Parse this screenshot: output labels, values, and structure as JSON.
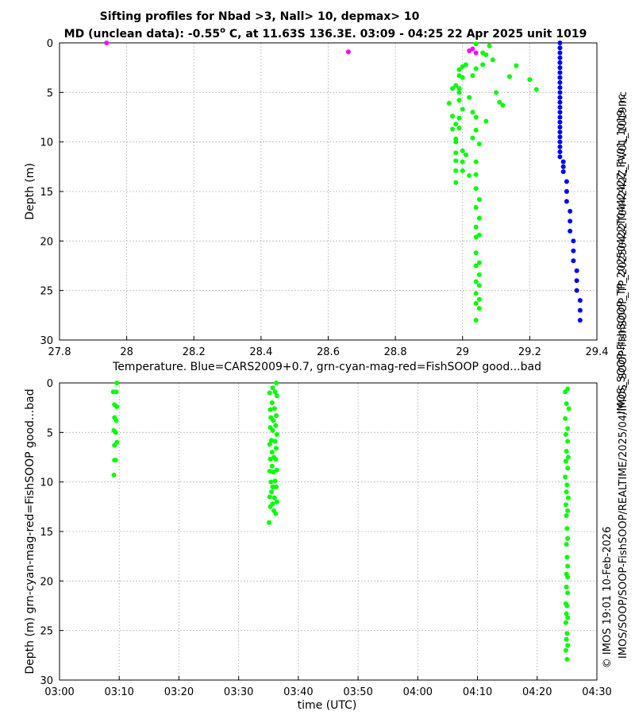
{
  "title_line1": "Sifting profiles for Nbad >3, Nall> 10, depmax> 10",
  "title_line2_pre": "MD (unclean data): -0.55",
  "title_line2_sup": "o",
  "title_line2_post": " C, at 11.63S 136.3E. 03:09 - 04:25 22 Apr 2025 unit 1019",
  "side_text_1": "IMOS_SOOP-FishSOOP_TP_20250422T044242Z_FV01_1019.nc",
  "side_text_2": "IMOS/SOOP/SOOP-FishSOOP/REALTIME/2025/04/IMOS_SOOP-FishSOOP_TP_20250422T044242Z_FV01_1019.nc",
  "side_text_3": "© IMOS 19:01 10-Feb-2026",
  "colors": {
    "good": "#00ff00",
    "bad": "#ff00ff",
    "cars": "#0000ff"
  },
  "chart_data": [
    {
      "type": "scatter",
      "xlabel": "Temperature. Blue=CARS2009+0.7, grn-cyan-mag-red=FishSOOP good...bad",
      "ylabel": "Depth (m)",
      "xlim": [
        27.8,
        29.4
      ],
      "ylim": [
        30,
        0
      ],
      "y_reversed": true,
      "xticks": [
        27.8,
        28,
        28.2,
        28.4,
        28.6,
        28.8,
        29,
        29.2,
        29.4
      ],
      "xtick_labels": [
        "27.8",
        "28",
        "28.2",
        "28.4",
        "28.6",
        "28.8",
        "29",
        "29.2",
        "29.4"
      ],
      "yticks": [
        0,
        5,
        10,
        15,
        20,
        25,
        30
      ],
      "ytick_labels": [
        "0",
        "5",
        "10",
        "15",
        "20",
        "25",
        "30"
      ],
      "grid": true,
      "series": [
        {
          "color_key": "good",
          "points": [
            [
              29.04,
              0.1
            ],
            [
              29.08,
              0.3
            ],
            [
              29.06,
              1.0
            ],
            [
              29.07,
              1.2
            ],
            [
              29.09,
              1.7
            ],
            [
              29.06,
              2.2
            ],
            [
              29.01,
              2.2
            ],
            [
              29.0,
              2.4
            ],
            [
              28.99,
              2.7
            ],
            [
              29.04,
              2.6
            ],
            [
              28.99,
              3.3
            ],
            [
              29.03,
              3.3
            ],
            [
              29.0,
              3.5
            ],
            [
              28.98,
              4.3
            ],
            [
              28.99,
              4.6
            ],
            [
              28.97,
              4.6
            ],
            [
              28.99,
              5.0
            ],
            [
              29.02,
              5.5
            ],
            [
              28.99,
              5.8
            ],
            [
              28.96,
              6.1
            ],
            [
              29.0,
              6.7
            ],
            [
              29.03,
              7.0
            ],
            [
              28.97,
              7.4
            ],
            [
              28.99,
              7.6
            ],
            [
              29.04,
              7.5
            ],
            [
              29.07,
              7.9
            ],
            [
              28.98,
              8.2
            ],
            [
              28.99,
              8.6
            ],
            [
              28.97,
              8.7
            ],
            [
              29.04,
              8.8
            ],
            [
              28.98,
              9.7
            ],
            [
              29.03,
              9.6
            ],
            [
              28.98,
              10.0
            ],
            [
              29.05,
              10.2
            ],
            [
              29.0,
              10.9
            ],
            [
              28.98,
              11.1
            ],
            [
              29.01,
              11.3
            ],
            [
              28.98,
              11.9
            ],
            [
              29.0,
              12.0
            ],
            [
              29.04,
              12.0
            ],
            [
              29.0,
              12.9
            ],
            [
              28.98,
              12.9
            ],
            [
              29.02,
              13.4
            ],
            [
              29.04,
              13.3
            ],
            [
              28.98,
              14.1
            ],
            [
              29.04,
              14.7
            ],
            [
              29.05,
              15.8
            ],
            [
              29.04,
              16.6
            ],
            [
              29.05,
              17.7
            ],
            [
              29.04,
              18.6
            ],
            [
              29.04,
              19.6
            ],
            [
              29.05,
              19.4
            ],
            [
              29.04,
              21.2
            ],
            [
              29.05,
              22.2
            ],
            [
              29.04,
              22.5
            ],
            [
              29.05,
              23.4
            ],
            [
              29.04,
              24.1
            ],
            [
              29.05,
              24.5
            ],
            [
              29.04,
              25.3
            ],
            [
              29.05,
              25.9
            ],
            [
              29.04,
              26.3
            ],
            [
              29.05,
              26.8
            ],
            [
              29.04,
              28.0
            ],
            [
              29.1,
              5.0
            ],
            [
              29.11,
              6.0
            ],
            [
              29.12,
              6.3
            ],
            [
              29.14,
              3.4
            ],
            [
              29.16,
              2.3
            ],
            [
              29.2,
              3.7
            ],
            [
              29.22,
              4.7
            ]
          ]
        },
        {
          "color_key": "bad",
          "points": [
            [
              27.94,
              0.0
            ],
            [
              28.66,
              0.9
            ],
            [
              29.03,
              0.6
            ],
            [
              29.04,
              1.0
            ],
            [
              29.02,
              0.8
            ]
          ]
        },
        {
          "color_key": "cars",
          "points": [
            [
              29.29,
              0.0
            ],
            [
              29.29,
              0.5
            ],
            [
              29.29,
              1.0
            ],
            [
              29.29,
              1.5
            ],
            [
              29.29,
              2.0
            ],
            [
              29.29,
              2.5
            ],
            [
              29.29,
              3.0
            ],
            [
              29.29,
              3.5
            ],
            [
              29.29,
              4.0
            ],
            [
              29.29,
              4.5
            ],
            [
              29.29,
              5.0
            ],
            [
              29.29,
              5.5
            ],
            [
              29.29,
              6.0
            ],
            [
              29.29,
              6.5
            ],
            [
              29.29,
              7.0
            ],
            [
              29.29,
              7.5
            ],
            [
              29.29,
              8.0
            ],
            [
              29.29,
              8.5
            ],
            [
              29.29,
              9.0
            ],
            [
              29.29,
              9.5
            ],
            [
              29.29,
              10.0
            ],
            [
              29.29,
              10.5
            ],
            [
              29.29,
              11.0
            ],
            [
              29.29,
              11.5
            ],
            [
              29.3,
              12.0
            ],
            [
              29.3,
              12.5
            ],
            [
              29.3,
              13.0
            ],
            [
              29.31,
              14.0
            ],
            [
              29.31,
              15.0
            ],
            [
              29.31,
              16.0
            ],
            [
              29.32,
              17.0
            ],
            [
              29.32,
              18.0
            ],
            [
              29.32,
              19.0
            ],
            [
              29.33,
              20.0
            ],
            [
              29.33,
              21.0
            ],
            [
              29.33,
              22.0
            ],
            [
              29.34,
              23.0
            ],
            [
              29.34,
              24.0
            ],
            [
              29.34,
              25.0
            ],
            [
              29.35,
              26.0
            ],
            [
              29.35,
              27.0
            ],
            [
              29.35,
              28.0
            ]
          ]
        }
      ]
    },
    {
      "type": "scatter",
      "xlabel": "time (UTC)",
      "ylabel": "Depth (m) grn-cyan-mag-red=FishSOOP good...bad",
      "xlim": [
        "03:00",
        "04:30"
      ],
      "ylim": [
        30,
        0
      ],
      "y_reversed": true,
      "xticks": [
        "03:00",
        "03:10",
        "03:20",
        "03:30",
        "03:40",
        "03:50",
        "04:00",
        "04:10",
        "04:20",
        "04:30"
      ],
      "yticks": [
        0,
        5,
        10,
        15,
        20,
        25,
        30
      ],
      "ytick_labels": [
        "0",
        "5",
        "10",
        "15",
        "20",
        "25",
        "30"
      ],
      "grid": true,
      "series": [
        {
          "color_key": "good",
          "points": [
            [
              "03:09:36",
              0.0
            ],
            [
              "03:09:00",
              0.9
            ],
            [
              "03:09:30",
              0.9
            ],
            [
              "03:09:12",
              2.2
            ],
            [
              "03:09:36",
              2.4
            ],
            [
              "03:09:12",
              3.5
            ],
            [
              "03:09:30",
              3.8
            ],
            [
              "03:09:06",
              4.8
            ],
            [
              "03:09:24",
              5.0
            ],
            [
              "03:09:36",
              6.0
            ],
            [
              "03:09:12",
              6.3
            ],
            [
              "03:09:12",
              7.8
            ],
            [
              "03:09:24",
              7.8
            ],
            [
              "03:09:06",
              9.3
            ],
            [
              "03:36:18",
              0.0
            ],
            [
              "03:35:42",
              0.5
            ],
            [
              "03:36:06",
              0.9
            ],
            [
              "03:35:12",
              1.0
            ],
            [
              "03:36:24",
              1.3
            ],
            [
              "03:35:36",
              2.0
            ],
            [
              "03:35:18",
              2.7
            ],
            [
              "03:36:00",
              2.6
            ],
            [
              "03:36:18",
              3.3
            ],
            [
              "03:35:24",
              3.5
            ],
            [
              "03:35:48",
              3.8
            ],
            [
              "03:36:12",
              4.3
            ],
            [
              "03:35:18",
              4.5
            ],
            [
              "03:35:42",
              4.8
            ],
            [
              "03:36:24",
              5.2
            ],
            [
              "03:35:30",
              5.8
            ],
            [
              "03:36:06",
              5.9
            ],
            [
              "03:35:12",
              6.2
            ],
            [
              "03:36:18",
              6.6
            ],
            [
              "03:35:36",
              7.0
            ],
            [
              "03:35:54",
              7.5
            ],
            [
              "03:35:18",
              7.7
            ],
            [
              "03:36:12",
              7.7
            ],
            [
              "03:35:36",
              8.4
            ],
            [
              "03:36:24",
              8.8
            ],
            [
              "03:35:12",
              8.9
            ],
            [
              "03:35:48",
              9.0
            ],
            [
              "03:36:06",
              9.9
            ],
            [
              "03:35:24",
              10.0
            ],
            [
              "03:35:42",
              10.5
            ],
            [
              "03:36:18",
              10.5
            ],
            [
              "03:35:30",
              11.0
            ],
            [
              "03:35:12",
              11.5
            ],
            [
              "03:36:00",
              11.6
            ],
            [
              "03:36:24",
              12.0
            ],
            [
              "03:35:42",
              12.2
            ],
            [
              "03:35:18",
              12.5
            ],
            [
              "03:35:54",
              12.9
            ],
            [
              "03:36:12",
              13.2
            ],
            [
              "03:35:06",
              14.1
            ],
            [
              "04:25:06",
              0.6
            ],
            [
              "04:24:42",
              0.9
            ],
            [
              "04:24:54",
              2.1
            ],
            [
              "04:25:18",
              2.6
            ],
            [
              "04:24:42",
              3.6
            ],
            [
              "04:25:06",
              4.6
            ],
            [
              "04:24:48",
              5.2
            ],
            [
              "04:25:06",
              5.9
            ],
            [
              "04:24:54",
              6.9
            ],
            [
              "04:25:12",
              7.5
            ],
            [
              "04:24:48",
              7.9
            ],
            [
              "04:25:06",
              8.6
            ],
            [
              "04:24:42",
              9.5
            ],
            [
              "04:25:00",
              10.3
            ],
            [
              "04:24:54",
              11.0
            ],
            [
              "04:25:12",
              11.6
            ],
            [
              "04:24:48",
              12.3
            ],
            [
              "04:25:06",
              12.9
            ],
            [
              "04:24:54",
              13.4
            ],
            [
              "04:25:00",
              14.7
            ],
            [
              "04:25:06",
              15.7
            ],
            [
              "04:24:54",
              16.3
            ],
            [
              "04:25:00",
              17.6
            ],
            [
              "04:25:06",
              18.5
            ],
            [
              "04:24:54",
              19.3
            ],
            [
              "04:25:06",
              19.6
            ],
            [
              "04:24:54",
              20.6
            ],
            [
              "04:25:06",
              21.2
            ],
            [
              "04:24:48",
              22.3
            ],
            [
              "04:25:00",
              22.5
            ],
            [
              "04:24:54",
              23.3
            ],
            [
              "04:25:06",
              23.7
            ],
            [
              "04:24:48",
              24.2
            ],
            [
              "04:25:00",
              25.3
            ],
            [
              "04:24:54",
              25.9
            ],
            [
              "04:25:06",
              26.5
            ],
            [
              "04:24:48",
              27.0
            ],
            [
              "04:25:00",
              27.9
            ]
          ]
        }
      ]
    }
  ]
}
